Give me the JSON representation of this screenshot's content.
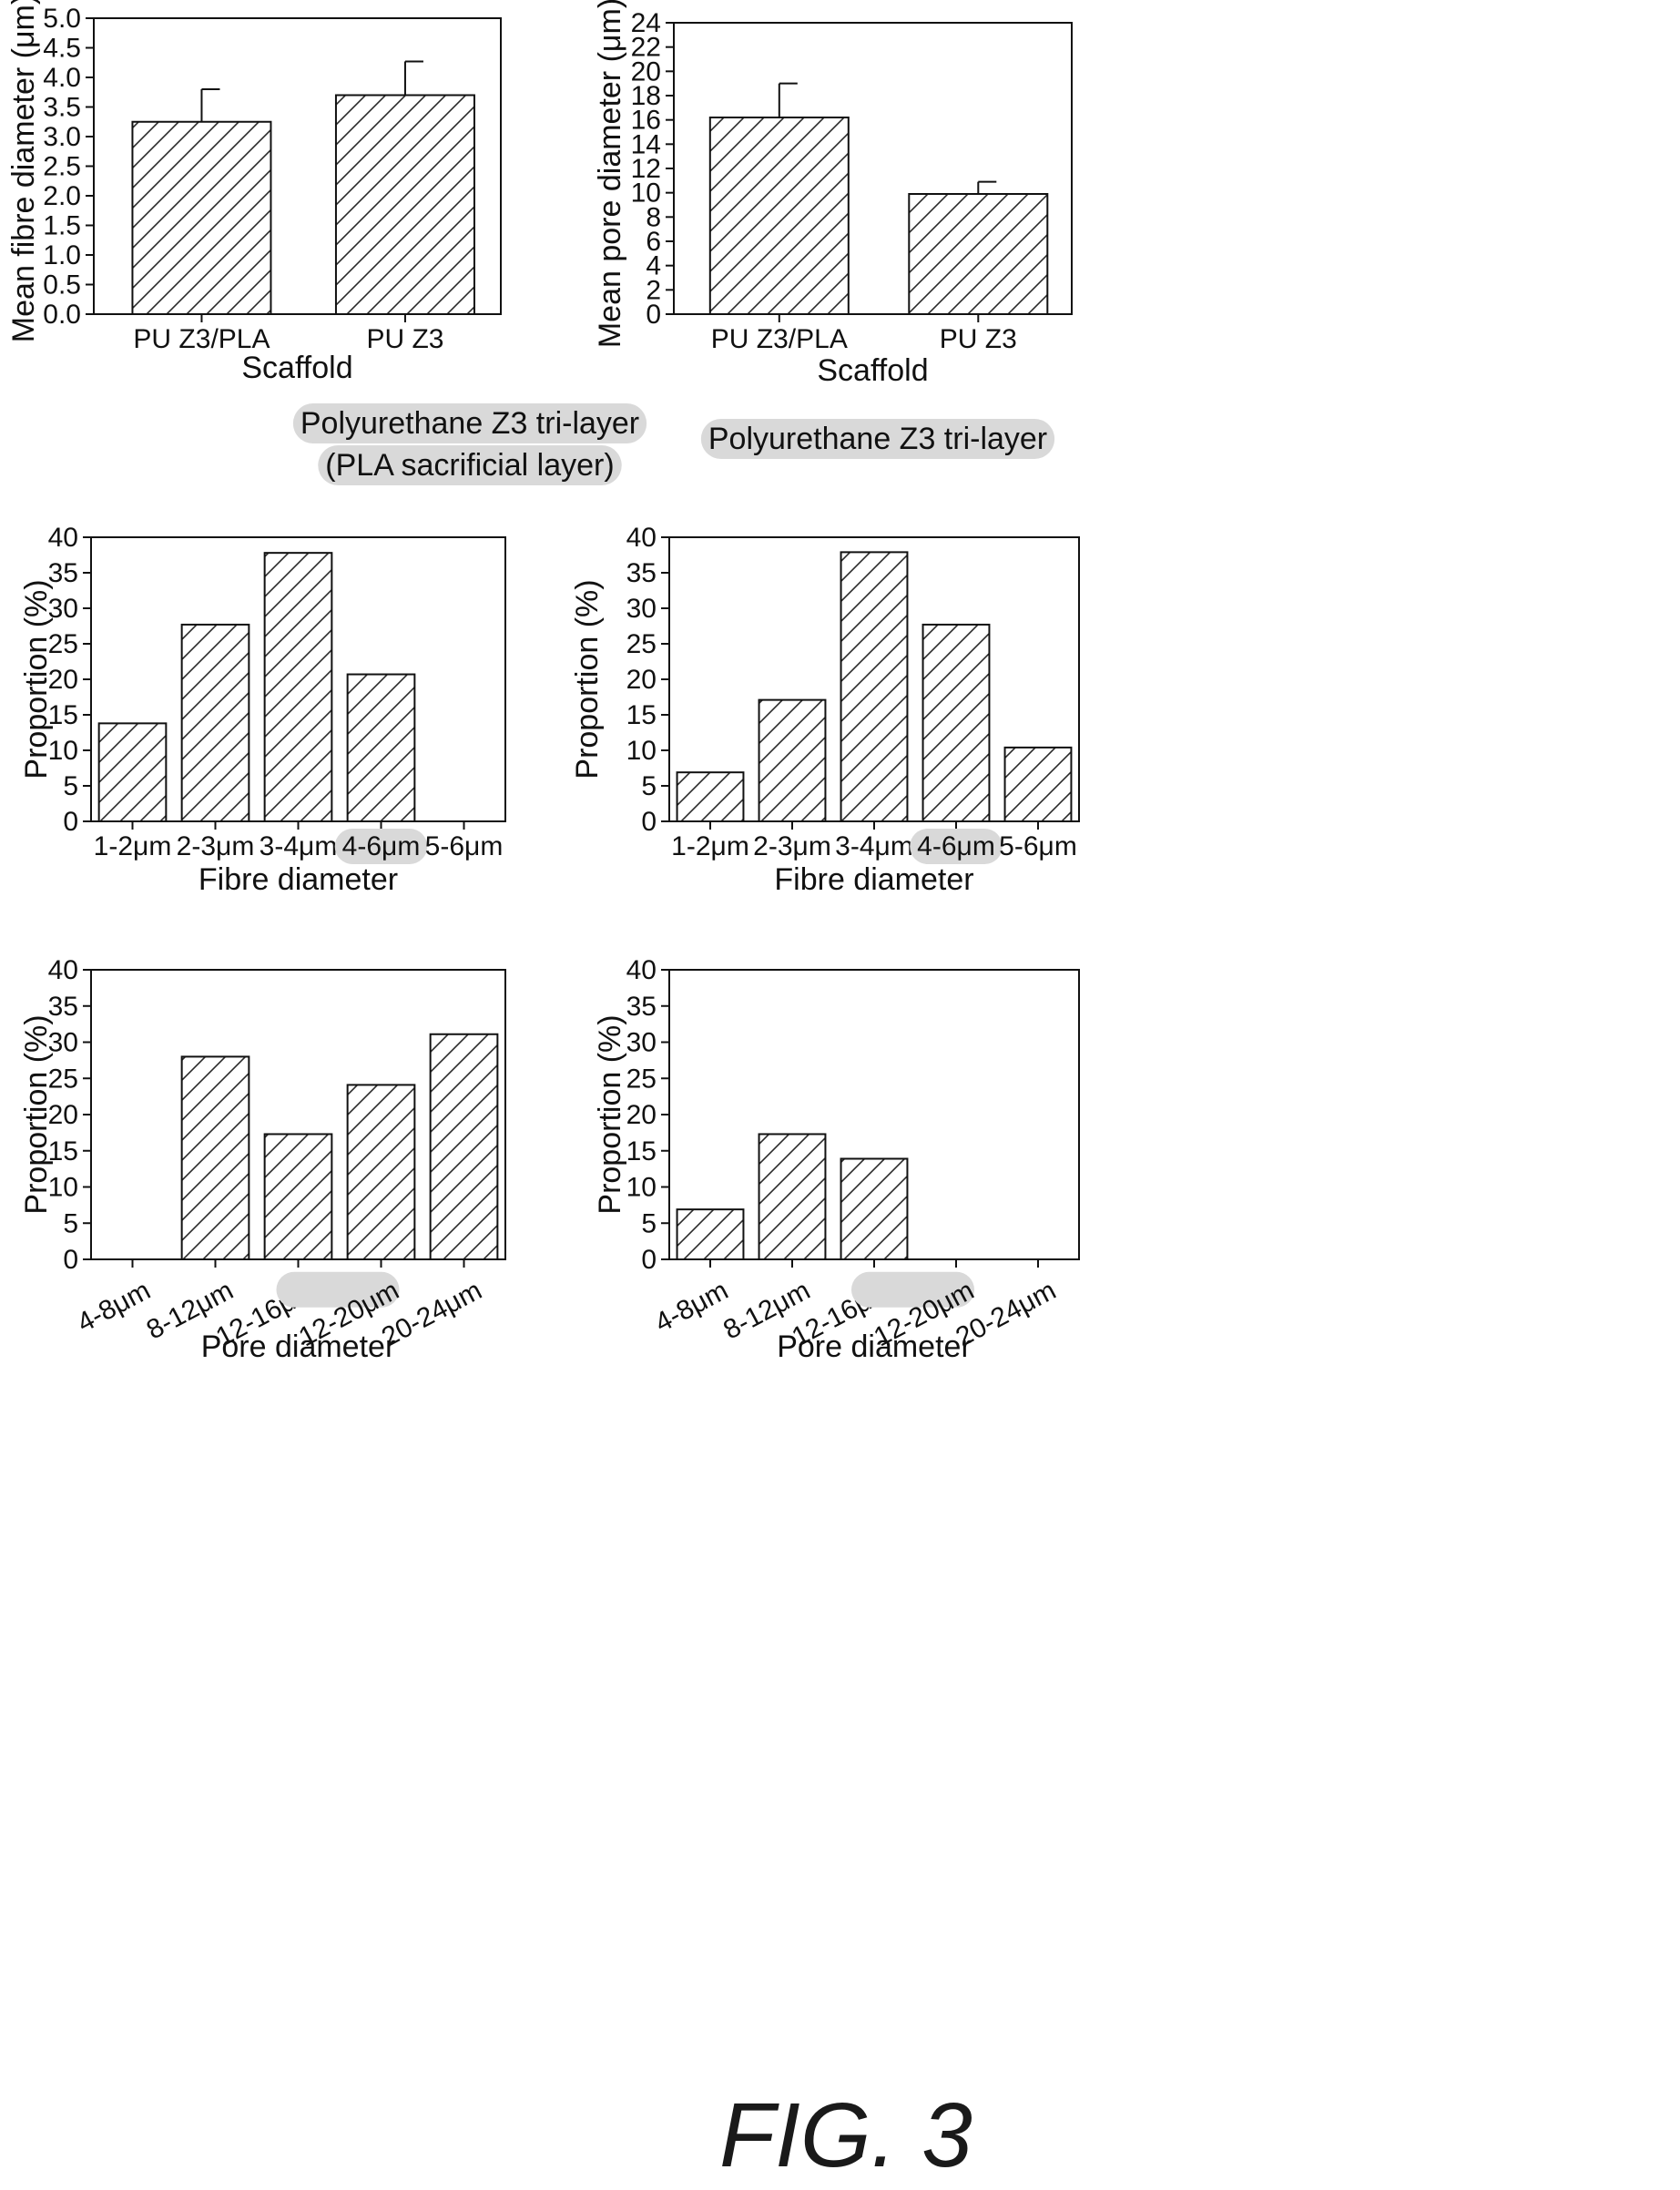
{
  "figure_label": "FIG. 3",
  "subtitles": [
    "Polyurethane Z3 tri-layer",
    "(PLA sacrificial layer)",
    "Polyurethane Z3 tri-layer"
  ],
  "highlight_color": "#d9d9d9",
  "chart_data": [
    {
      "id": "mean-fibre",
      "type": "bar",
      "title": "",
      "xlabel": "Scaffold",
      "ylabel": "Mean fibre diameter (μm)",
      "categories": [
        "PU Z3/PLA",
        "PU Z3"
      ],
      "values": [
        3.25,
        3.7
      ],
      "error_bars": [
        0.55,
        0.57
      ],
      "ylim": [
        0,
        5.0
      ],
      "yticks": [
        "0.0",
        "0.5",
        "1.0",
        "1.5",
        "2.0",
        "2.5",
        "3.0",
        "3.5",
        "4.0",
        "4.5",
        "5.0"
      ],
      "hatch": "diagonal"
    },
    {
      "id": "mean-pore",
      "type": "bar",
      "title": "",
      "xlabel": "Scaffold",
      "ylabel": "Mean pore diameter (μm)",
      "categories": [
        "PU Z3/PLA",
        "PU Z3"
      ],
      "values": [
        16.2,
        9.9
      ],
      "error_bars": [
        2.8,
        1.0
      ],
      "ylim": [
        0,
        24
      ],
      "yticks": [
        "0",
        "2",
        "4",
        "6",
        "8",
        "10",
        "12",
        "14",
        "16",
        "18",
        "20",
        "22",
        "24"
      ],
      "hatch": "diagonal"
    },
    {
      "id": "fibre-dist-pla",
      "type": "bar",
      "title": "",
      "xlabel": "Fibre diameter",
      "ylabel": "Proportion (%)",
      "categories": [
        "1-2μm",
        "2-3μm",
        "3-4μm",
        "4-6μm",
        "5-6μm"
      ],
      "highlighted_category": "4-6μm",
      "values": [
        13.8,
        27.7,
        37.8,
        20.7,
        0
      ],
      "ylim": [
        0,
        40
      ],
      "yticks": [
        "0",
        "5",
        "10",
        "15",
        "20",
        "25",
        "30",
        "35",
        "40"
      ],
      "hatch": "diagonal"
    },
    {
      "id": "fibre-dist",
      "type": "bar",
      "title": "",
      "xlabel": "Fibre diameter",
      "ylabel": "Proportion (%)",
      "categories": [
        "1-2μm",
        "2-3μm",
        "3-4μm",
        "4-6μm",
        "5-6μm"
      ],
      "highlighted_category": "4-6μm",
      "values": [
        6.9,
        17.1,
        37.9,
        27.7,
        10.4
      ],
      "ylim": [
        0,
        40
      ],
      "yticks": [
        "0",
        "5",
        "10",
        "15",
        "20",
        "25",
        "30",
        "35",
        "40"
      ],
      "hatch": "diagonal"
    },
    {
      "id": "pore-dist-pla",
      "type": "bar",
      "title": "",
      "xlabel": "Pore diameter",
      "ylabel": "Proportion (%)",
      "categories": [
        "4-8μm",
        "8-12μm",
        "12-16μm",
        "12-20μm",
        "20-24μm"
      ],
      "highlighted_category": "12-20μm",
      "values": [
        0,
        28.0,
        17.3,
        24.1,
        31.1
      ],
      "ylim": [
        0,
        40
      ],
      "yticks": [
        "0",
        "5",
        "10",
        "15",
        "20",
        "25",
        "30",
        "35",
        "40"
      ],
      "hatch": "diagonal"
    },
    {
      "id": "pore-dist",
      "type": "bar",
      "title": "",
      "xlabel": "Pore diameter",
      "ylabel": "Proportion (%)",
      "categories": [
        "4-8μm",
        "8-12μm",
        "12-16μm",
        "12-20μm",
        "20-24μm"
      ],
      "highlighted_category": "12-20μm",
      "values": [
        6.9,
        17.3,
        13.9,
        0,
        0
      ],
      "ylim": [
        0,
        40
      ],
      "yticks": [
        "0",
        "5",
        "10",
        "15",
        "20",
        "25",
        "30",
        "35",
        "40"
      ],
      "hatch": "diagonal"
    }
  ]
}
